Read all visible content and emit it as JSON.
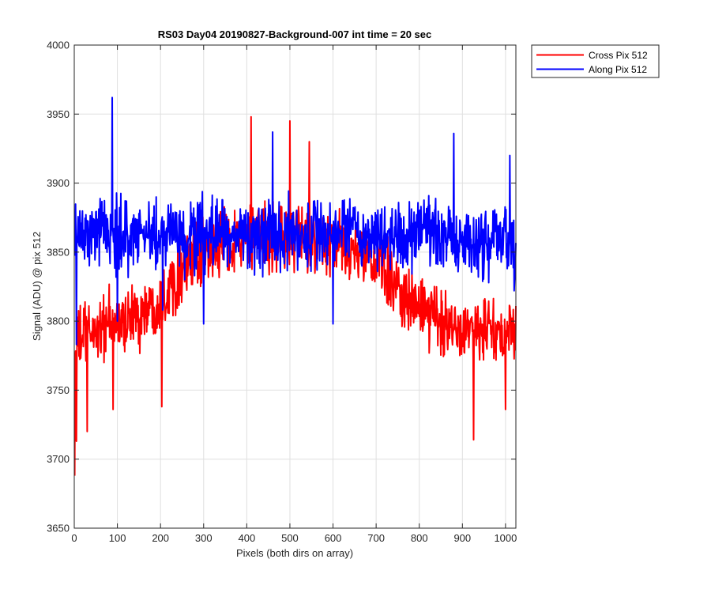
{
  "chart_data": {
    "type": "line",
    "title": "RS03 Day04 20190827-Background-007 int time = 20 sec",
    "xlabel": "Pixels (both dirs on array)",
    "ylabel": "Signal (ADU) @ pix 512",
    "xlim": [
      0,
      1024
    ],
    "ylim": [
      3650,
      4000
    ],
    "xticks": [
      0,
      100,
      200,
      300,
      400,
      500,
      600,
      700,
      800,
      900,
      1000
    ],
    "yticks": [
      3650,
      3700,
      3750,
      3800,
      3850,
      3900,
      3950,
      4000
    ],
    "grid": true,
    "legend_position": "outside-top-right",
    "series": [
      {
        "name": "Cross Pix 512",
        "color": "#ff0000",
        "x_start": 1,
        "x_end": 1024,
        "noise_peak_to_peak": 70,
        "profile": [
          [
            0,
            3780
          ],
          [
            20,
            3790
          ],
          [
            60,
            3795
          ],
          [
            100,
            3798
          ],
          [
            150,
            3805
          ],
          [
            200,
            3815
          ],
          [
            250,
            3838
          ],
          [
            300,
            3850
          ],
          [
            350,
            3858
          ],
          [
            400,
            3860
          ],
          [
            450,
            3860
          ],
          [
            500,
            3860
          ],
          [
            550,
            3858
          ],
          [
            600,
            3855
          ],
          [
            650,
            3850
          ],
          [
            700,
            3843
          ],
          [
            750,
            3825
          ],
          [
            800,
            3808
          ],
          [
            850,
            3800
          ],
          [
            900,
            3797
          ],
          [
            950,
            3793
          ],
          [
            1000,
            3790
          ],
          [
            1024,
            3790
          ]
        ],
        "notable_points": [
          [
            1,
            3688
          ],
          [
            5,
            3713
          ],
          [
            30,
            3720
          ],
          [
            90,
            3736
          ],
          [
            203,
            3738
          ],
          [
            410,
            3948
          ],
          [
            500,
            3945
          ],
          [
            545,
            3930
          ],
          [
            926,
            3714
          ],
          [
            1000,
            3736
          ]
        ]
      },
      {
        "name": "Along Pix 512",
        "color": "#0000ff",
        "x_start": 1,
        "x_end": 1024,
        "noise_peak_to_peak": 75,
        "profile": [
          [
            0,
            3860
          ],
          [
            100,
            3862
          ],
          [
            200,
            3862
          ],
          [
            300,
            3862
          ],
          [
            400,
            3863
          ],
          [
            500,
            3863
          ],
          [
            600,
            3862
          ],
          [
            700,
            3862
          ],
          [
            800,
            3862
          ],
          [
            900,
            3860
          ],
          [
            1000,
            3858
          ],
          [
            1024,
            3850
          ]
        ],
        "notable_points": [
          [
            5,
            3783
          ],
          [
            88,
            3962
          ],
          [
            100,
            3800
          ],
          [
            205,
            3808
          ],
          [
            300,
            3798
          ],
          [
            460,
            3937
          ],
          [
            600,
            3798
          ],
          [
            880,
            3936
          ],
          [
            1010,
            3920
          ],
          [
            1020,
            3822
          ]
        ]
      }
    ]
  }
}
